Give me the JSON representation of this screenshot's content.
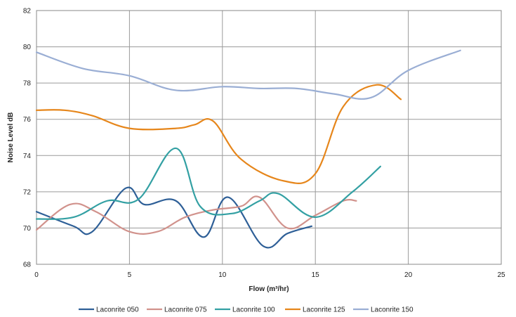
{
  "chart_data": {
    "type": "line",
    "title": "",
    "xlabel": "Flow  (m³/hr)",
    "ylabel": "Noise Level dB",
    "xlim": [
      0,
      25
    ],
    "ylim": [
      68,
      82
    ],
    "x_ticks": [
      "0",
      "5",
      "10",
      "15",
      "20",
      "25"
    ],
    "y_ticks": [
      "68",
      "70",
      "72",
      "74",
      "76",
      "78",
      "80",
      "82"
    ],
    "grid": true,
    "legend_position": "bottom",
    "series": [
      {
        "name": "Laconrite 050",
        "color": "#2e5f97",
        "x": [
          0,
          2,
          3,
          4.8,
          5.8,
          7.5,
          9,
          10.3,
          12.2,
          13.5,
          14.8
        ],
        "y": [
          70.9,
          70.1,
          69.8,
          72.2,
          71.3,
          71.5,
          69.5,
          71.7,
          69,
          69.7,
          70.1
        ]
      },
      {
        "name": "Laconrite 075",
        "color": "#d1928c",
        "x": [
          0,
          1.8,
          3.2,
          5,
          6.5,
          8,
          9.5,
          11,
          12,
          13.5,
          15,
          16.5,
          17.2
        ],
        "y": [
          69.9,
          71.3,
          70.9,
          69.8,
          69.8,
          70.6,
          71,
          71.2,
          71.7,
          70,
          70.7,
          71.5,
          71.5
        ]
      },
      {
        "name": "Laconrite 100",
        "color": "#33a0a3",
        "x": [
          0,
          2,
          3.8,
          5.5,
          7.5,
          8.8,
          10.5,
          12,
          13,
          15,
          17,
          18.5
        ],
        "y": [
          70.5,
          70.6,
          71.5,
          71.6,
          74.4,
          71.2,
          70.8,
          71.5,
          71.9,
          70.6,
          72,
          73.4
        ]
      },
      {
        "name": "Laconrite 125",
        "color": "#e6861b",
        "x": [
          0,
          1.5,
          3,
          5,
          7.5,
          8.5,
          9.5,
          11,
          13.3,
          15,
          16.5,
          18.3,
          19.6
        ],
        "y": [
          76.5,
          76.5,
          76.2,
          75.5,
          75.5,
          75.7,
          75.9,
          73.8,
          72.6,
          73,
          76.7,
          77.9,
          77.1
        ]
      },
      {
        "name": "Laconrite 150",
        "color": "#9aaed4",
        "x": [
          0,
          2.5,
          5,
          7.5,
          10,
          12,
          14,
          16,
          18,
          20,
          22.8
        ],
        "y": [
          79.7,
          78.8,
          78.4,
          77.6,
          77.8,
          77.7,
          77.7,
          77.4,
          77.2,
          78.7,
          79.8
        ]
      }
    ]
  }
}
